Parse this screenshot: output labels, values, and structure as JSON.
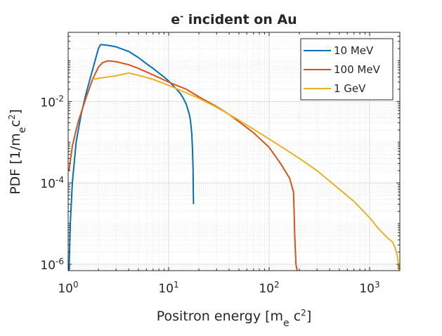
{
  "chart_data": {
    "type": "line",
    "title": "e- incident on Au",
    "xlabel": "Positron energy [me c2]",
    "ylabel": "PDF [1/me c2]",
    "xscale": "log",
    "yscale": "log",
    "xlim": [
      1,
      2000
    ],
    "ylim": [
      7e-07,
      0.5
    ],
    "xticks": [
      1,
      10,
      100,
      1000
    ],
    "xtick_labels": [
      {
        "base": "10",
        "exp": "0"
      },
      {
        "base": "10",
        "exp": "1"
      },
      {
        "base": "10",
        "exp": "2"
      },
      {
        "base": "10",
        "exp": "3"
      }
    ],
    "yticks": [
      1e-06,
      0.0001,
      0.01
    ],
    "ytick_labels": [
      {
        "base": "10",
        "exp": "-6"
      },
      {
        "base": "10",
        "exp": "-4"
      },
      {
        "base": "10",
        "exp": "-2"
      }
    ],
    "grid": true,
    "minor_grid": true,
    "legend_position": "top-right",
    "series": [
      {
        "name": "10 MeV",
        "color": "#0072BD",
        "x": [
          1.02,
          1.05,
          1.1,
          1.2,
          1.35,
          1.5,
          1.75,
          2.0,
          2.1,
          2.5,
          3.0,
          4.0,
          5.0,
          6.0,
          7.0,
          8.0,
          9.0,
          10.0,
          11.0,
          12.0,
          13.0,
          14.0,
          15.0,
          16.0,
          16.5,
          17.0,
          17.3,
          17.5,
          17.6,
          17.7
        ],
        "y": [
          7e-07,
          1e-05,
          0.0001,
          0.001,
          0.005,
          0.015,
          0.06,
          0.2,
          0.25,
          0.24,
          0.22,
          0.17,
          0.12,
          0.085,
          0.065,
          0.05,
          0.04,
          0.032,
          0.025,
          0.02,
          0.016,
          0.012,
          0.0085,
          0.005,
          0.0034,
          0.0016,
          0.0006,
          0.00022,
          6e-05,
          3e-05
        ]
      },
      {
        "name": "100 MeV",
        "color": "#D95319",
        "x": [
          1.02,
          1.1,
          1.25,
          1.5,
          1.75,
          2.0,
          2.2,
          2.5,
          3.0,
          4.0,
          5.0,
          7.0,
          10.0,
          15.0,
          20.0,
          30.0,
          40.0,
          50.0,
          70.0,
          100.0,
          130.0,
          160.0,
          175.0,
          180.0,
          185.0,
          190.0
        ],
        "y": [
          0.0002,
          0.0008,
          0.003,
          0.012,
          0.035,
          0.07,
          0.09,
          0.1,
          0.095,
          0.08,
          0.065,
          0.045,
          0.03,
          0.02,
          0.013,
          0.0075,
          0.0048,
          0.0032,
          0.0017,
          0.00075,
          0.0003,
          0.00013,
          6e-05,
          5e-06,
          1e-06,
          7e-07
        ]
      },
      {
        "name": "1 GeV",
        "color": "#EDB120",
        "x": [
          1.75,
          2.0,
          3.0,
          4.0,
          5.0,
          7.0,
          10.0,
          20.0,
          30.0,
          50.0,
          100.0,
          200.0,
          300.0,
          500.0,
          700.0,
          1000.0,
          1200.0,
          1500.0,
          1700.0,
          1800.0,
          1900.0,
          1950.0,
          1970.0
        ],
        "y": [
          0.035,
          0.037,
          0.043,
          0.05,
          0.044,
          0.035,
          0.025,
          0.012,
          0.0072,
          0.0035,
          0.0012,
          0.0004,
          0.0002,
          7e-05,
          3.5e-05,
          1.4e-05,
          8e-06,
          4.5e-06,
          3.5e-06,
          2.5e-06,
          1.5e-06,
          8e-07,
          7e-07
        ]
      }
    ]
  }
}
